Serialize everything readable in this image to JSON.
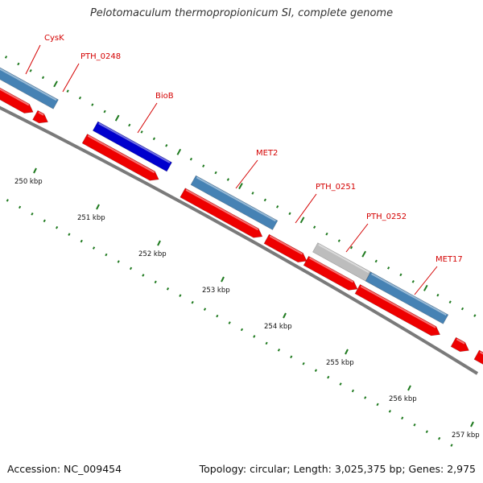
{
  "title": "Pelotomaculum thermopropionicum SI, complete genome",
  "footer": {
    "accession": "Accession: NC_009454",
    "summary": "Topology: circular; Length: 3,025,375 bp; Genes: 2,975"
  },
  "colors": {
    "backbone": "#7a7a7a",
    "tick": "#1f7a1f",
    "label": "#d40000",
    "gene_forward_light": "#4682b4",
    "gene_forward_dark": "#0000cd",
    "gene_reverse": "#ee0000",
    "gene_gray": "#bdbdbd"
  },
  "genes": [
    {
      "name": "CysK"
    },
    {
      "name": "PTH_0248"
    },
    {
      "name": "BioB"
    },
    {
      "name": "MET2"
    },
    {
      "name": "PTH_0251"
    },
    {
      "name": "PTH_0252"
    },
    {
      "name": "MET17"
    }
  ],
  "tick_labels": [
    {
      "text": "250 kbp"
    },
    {
      "text": "251 kbp"
    },
    {
      "text": "252 kbp"
    },
    {
      "text": "253 kbp"
    },
    {
      "text": "254 kbp"
    },
    {
      "text": "255 kbp"
    },
    {
      "text": "256 kbp"
    },
    {
      "text": "257 kbp"
    }
  ]
}
